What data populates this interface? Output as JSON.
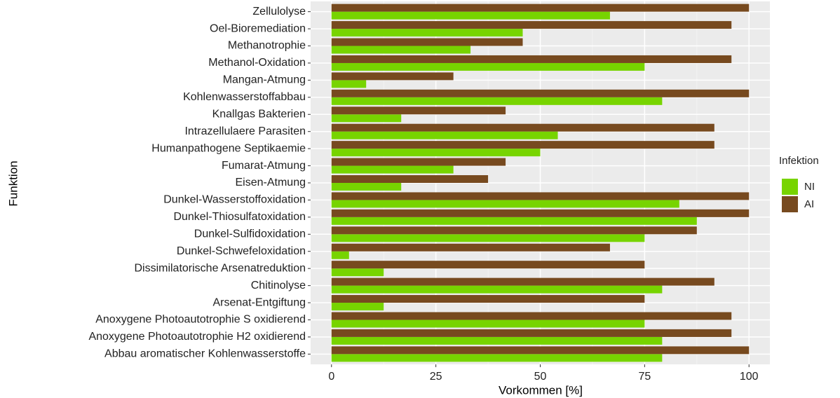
{
  "chart_data": {
    "type": "bar",
    "orientation": "horizontal",
    "xlabel": "Vorkommen [%]",
    "ylabel": "Funktion",
    "legend_title": "Infektion",
    "legend_position": "right",
    "categories": [
      "Zellulolyse",
      "Oel-Bioremediation",
      "Methanotrophie",
      "Methanol-Oxidation",
      "Mangan-Atmung",
      "Kohlenwasserstoffabbau",
      "Knallgas Bakterien",
      "Intrazellulaere Parasiten",
      "Humanpathogene Septikaemie",
      "Fumarat-Atmung",
      "Eisen-Atmung",
      "Dunkel-Wasserstoffoxidation",
      "Dunkel-Thiosulfatoxidation",
      "Dunkel-Sulfidoxidation",
      "Dunkel-Schwefeloxidation",
      "Dissimilatorische Arsenatreduktion",
      "Chitinolyse",
      "Arsenat-Entgiftung",
      "Anoxygene Photoautotrophie S oxidierend",
      "Anoxygene Photoautotrophie H2 oxidierend",
      "Abbau aromatischer Kohlenwasserstoffe"
    ],
    "series": [
      {
        "name": "NI",
        "color": "#77d400",
        "values": [
          66.7,
          45.8,
          33.3,
          75,
          8.3,
          79.2,
          16.7,
          54.2,
          50,
          29.2,
          16.7,
          83.3,
          87.5,
          75,
          4.2,
          12.5,
          79.2,
          12.5,
          75,
          79.2,
          79.2
        ]
      },
      {
        "name": "AI",
        "color": "#774a1f",
        "values": [
          100,
          95.8,
          45.8,
          95.8,
          29.2,
          100,
          41.7,
          91.7,
          91.7,
          41.7,
          37.5,
          100,
          100,
          87.5,
          66.7,
          75,
          91.7,
          75,
          95.8,
          95.8,
          100
        ]
      }
    ],
    "xlim": [
      -5,
      105
    ],
    "xticks": [
      0,
      25,
      50,
      75,
      100
    ],
    "xminorticks": [
      12.5,
      37.5,
      62.5,
      87.5
    ],
    "grid": true
  }
}
